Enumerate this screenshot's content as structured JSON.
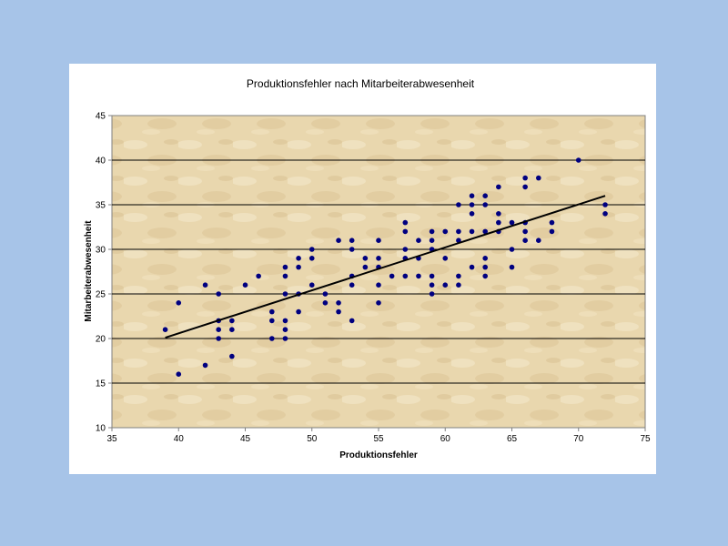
{
  "chart_data": {
    "type": "scatter",
    "title": "Produktionsfehler nach Mitarbeiterabwesenheit",
    "xlabel": "Produktionsfehler",
    "ylabel": "Mitarbeiterabwesenheit",
    "xlim": [
      35,
      75
    ],
    "ylim": [
      10,
      45
    ],
    "xticks": [
      35,
      40,
      45,
      50,
      55,
      60,
      65,
      70,
      75
    ],
    "yticks": [
      10,
      15,
      20,
      25,
      30,
      35,
      40,
      45
    ],
    "grid": "horizontal",
    "legend": "none",
    "colors": {
      "marker": "#000080",
      "trendline": "#000000",
      "plot_background": "#e8d6ae",
      "page_background": "#a7c4e8"
    },
    "points": [
      [
        39,
        21
      ],
      [
        40,
        24
      ],
      [
        40,
        16
      ],
      [
        42,
        26
      ],
      [
        42,
        17
      ],
      [
        43,
        25
      ],
      [
        43,
        22
      ],
      [
        43,
        21
      ],
      [
        43,
        20
      ],
      [
        44,
        22
      ],
      [
        44,
        21
      ],
      [
        44,
        18
      ],
      [
        45,
        26
      ],
      [
        46,
        27
      ],
      [
        47,
        23
      ],
      [
        47,
        22
      ],
      [
        47,
        20
      ],
      [
        48,
        28
      ],
      [
        48,
        27
      ],
      [
        48,
        25
      ],
      [
        48,
        22
      ],
      [
        48,
        21
      ],
      [
        48,
        20
      ],
      [
        49,
        29
      ],
      [
        49,
        28
      ],
      [
        49,
        25
      ],
      [
        49,
        23
      ],
      [
        50,
        30
      ],
      [
        50,
        29
      ],
      [
        50,
        26
      ],
      [
        51,
        25
      ],
      [
        51,
        24
      ],
      [
        52,
        31
      ],
      [
        52,
        24
      ],
      [
        52,
        23
      ],
      [
        53,
        31
      ],
      [
        53,
        30
      ],
      [
        53,
        27
      ],
      [
        53,
        26
      ],
      [
        53,
        22
      ],
      [
        54,
        29
      ],
      [
        54,
        28
      ],
      [
        55,
        31
      ],
      [
        55,
        29
      ],
      [
        55,
        28
      ],
      [
        55,
        26
      ],
      [
        55,
        24
      ],
      [
        56,
        27
      ],
      [
        57,
        33
      ],
      [
        57,
        32
      ],
      [
        57,
        30
      ],
      [
        57,
        29
      ],
      [
        57,
        27
      ],
      [
        58,
        31
      ],
      [
        58,
        29
      ],
      [
        58,
        27
      ],
      [
        59,
        32
      ],
      [
        59,
        31
      ],
      [
        59,
        30
      ],
      [
        59,
        27
      ],
      [
        59,
        26
      ],
      [
        59,
        25
      ],
      [
        60,
        32
      ],
      [
        60,
        29
      ],
      [
        60,
        26
      ],
      [
        61,
        35
      ],
      [
        61,
        32
      ],
      [
        61,
        31
      ],
      [
        61,
        27
      ],
      [
        61,
        26
      ],
      [
        62,
        36
      ],
      [
        62,
        35
      ],
      [
        62,
        34
      ],
      [
        62,
        32
      ],
      [
        62,
        28
      ],
      [
        63,
        36
      ],
      [
        63,
        35
      ],
      [
        63,
        32
      ],
      [
        63,
        29
      ],
      [
        63,
        28
      ],
      [
        63,
        27
      ],
      [
        64,
        37
      ],
      [
        64,
        34
      ],
      [
        64,
        33
      ],
      [
        64,
        32
      ],
      [
        65,
        33
      ],
      [
        65,
        30
      ],
      [
        65,
        28
      ],
      [
        66,
        38
      ],
      [
        66,
        37
      ],
      [
        66,
        33
      ],
      [
        66,
        32
      ],
      [
        66,
        31
      ],
      [
        67,
        38
      ],
      [
        67,
        31
      ],
      [
        68,
        33
      ],
      [
        68,
        32
      ],
      [
        70,
        40
      ],
      [
        72,
        35
      ],
      [
        72,
        34
      ]
    ],
    "trendline": {
      "type": "linear",
      "x": [
        39,
        72
      ],
      "y": [
        20.1,
        36
      ]
    }
  }
}
